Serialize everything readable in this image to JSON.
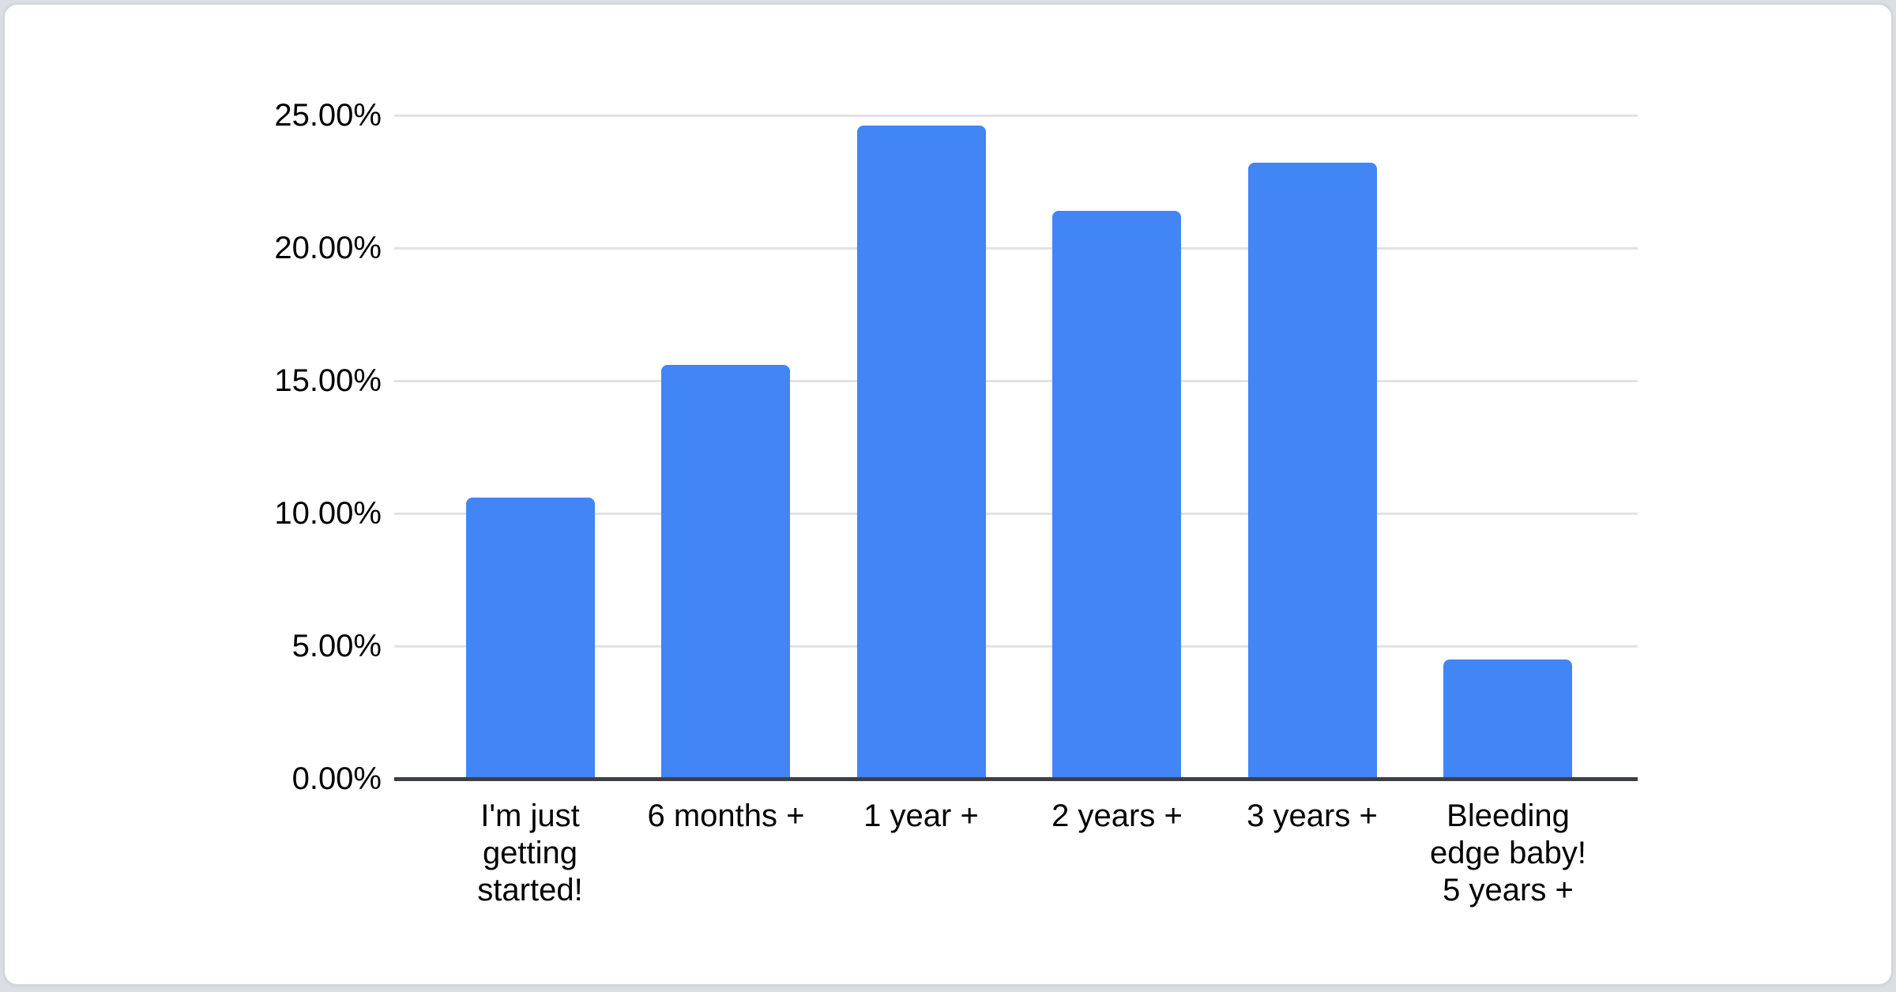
{
  "chart_data": {
    "type": "bar",
    "title": "",
    "xlabel": "",
    "ylabel": "",
    "categories": [
      "I'm just getting started!",
      "6 months +",
      "1 year +",
      "2 years +",
      "3 years +",
      "Bleeding edge baby! 5 years +"
    ],
    "category_lines": [
      [
        "I'm just",
        "getting",
        "started!"
      ],
      [
        "6 months +"
      ],
      [
        "1 year +"
      ],
      [
        "2 years +"
      ],
      [
        "3 years +"
      ],
      [
        "Bleeding",
        "edge baby!",
        "5 years +"
      ]
    ],
    "values": [
      10.6,
      15.6,
      24.6,
      21.4,
      23.2,
      4.5
    ],
    "value_unit": "%",
    "ylim": [
      0,
      25
    ],
    "y_ticks": [
      {
        "value": 0,
        "label": "0.00%"
      },
      {
        "value": 5,
        "label": "5.00%"
      },
      {
        "value": 10,
        "label": "10.00%"
      },
      {
        "value": 15,
        "label": "15.00%"
      },
      {
        "value": 20,
        "label": "20.00%"
      },
      {
        "value": 25,
        "label": "25.00%"
      }
    ],
    "grid": true,
    "legend_position": "none",
    "colors": {
      "bar": "#4285f4",
      "gridline": "#e2e2e2",
      "axis": "#3b4045",
      "label": "#000000"
    }
  }
}
